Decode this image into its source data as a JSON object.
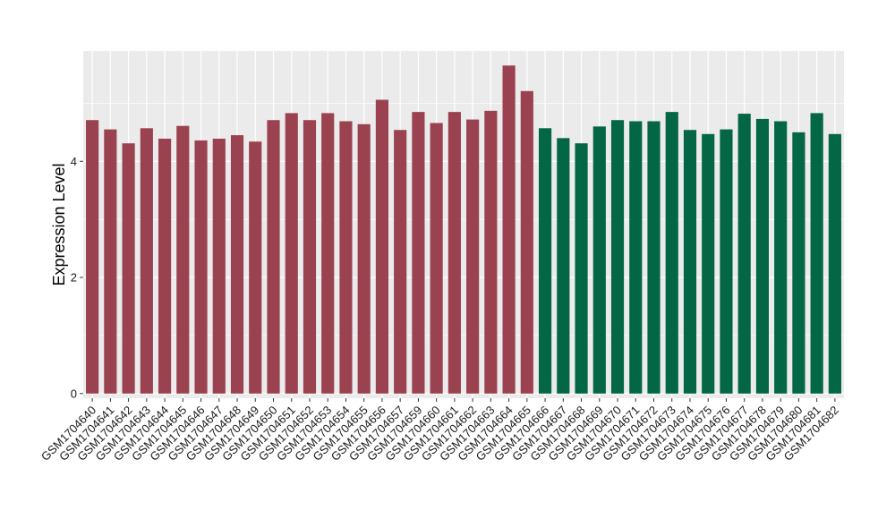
{
  "chart_data": {
    "type": "bar",
    "title": "",
    "xlabel": "",
    "ylabel": "Expression Level",
    "ylim": [
      -0.08,
      5.9
    ],
    "yticks": [
      0,
      2,
      4
    ],
    "ytick_labels": [
      "0",
      "2",
      "4"
    ],
    "grid": true,
    "legend": "none",
    "categories": [
      "GSM1704640",
      "GSM1704641",
      "GSM1704642",
      "GSM1704643",
      "GSM1704644",
      "GSM1704645",
      "GSM1704646",
      "GSM1704647",
      "GSM1704648",
      "GSM1704649",
      "GSM1704650",
      "GSM1704651",
      "GSM1704652",
      "GSM1704653",
      "GSM1704654",
      "GSM1704655",
      "GSM1704656",
      "GSM1704657",
      "GSM1704659",
      "GSM1704660",
      "GSM1704661",
      "GSM1704662",
      "GSM1704663",
      "GSM1704664",
      "GSM1704665",
      "GSM1704666",
      "GSM1704667",
      "GSM1704668",
      "GSM1704669",
      "GSM1704670",
      "GSM1704671",
      "GSM1704672",
      "GSM1704673",
      "GSM1704674",
      "GSM1704675",
      "GSM1704676",
      "GSM1704677",
      "GSM1704678",
      "GSM1704679",
      "GSM1704680",
      "GSM1704681",
      "GSM1704682"
    ],
    "values": [
      4.71,
      4.55,
      4.31,
      4.57,
      4.39,
      4.61,
      4.36,
      4.39,
      4.45,
      4.34,
      4.71,
      4.83,
      4.71,
      4.83,
      4.69,
      4.64,
      5.06,
      4.54,
      4.85,
      4.66,
      4.85,
      4.72,
      4.87,
      5.65,
      5.21,
      4.57,
      4.4,
      4.31,
      4.6,
      4.71,
      4.69,
      4.69,
      4.85,
      4.54,
      4.47,
      4.55,
      4.82,
      4.73,
      4.69,
      4.5,
      4.83,
      4.47
    ],
    "groups": [
      0,
      0,
      0,
      0,
      0,
      0,
      0,
      0,
      0,
      0,
      0,
      0,
      0,
      0,
      0,
      0,
      0,
      0,
      0,
      0,
      0,
      0,
      0,
      0,
      0,
      1,
      1,
      1,
      1,
      1,
      1,
      1,
      1,
      1,
      1,
      1,
      1,
      1,
      1,
      1,
      1,
      1
    ],
    "group_colors": [
      "#9b4250",
      "#036644"
    ],
    "panel_color": "#ebebeb",
    "grid_color": "#ffffff"
  }
}
